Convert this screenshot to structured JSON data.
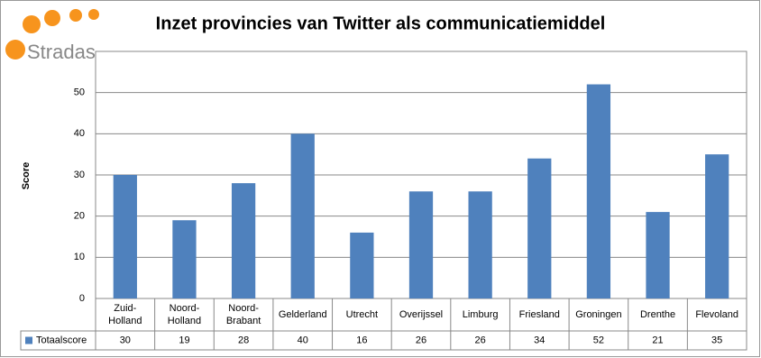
{
  "logo": "Stradas",
  "chart_data": {
    "type": "bar",
    "title": "Inzet provincies van Twitter als communicatiemiddel",
    "y_label": "Score",
    "categories": [
      "Zuid-Holland",
      "Noord-Holland",
      "Noord-Brabant",
      "Gelderland",
      "Utrecht",
      "Overijssel",
      "Limburg",
      "Friesland",
      "Groningen",
      "Drenthe",
      "Flevoland"
    ],
    "series": [
      {
        "name": "Totaalscore",
        "color": "#4f81bd",
        "values": [
          30,
          19,
          28,
          40,
          16,
          26,
          26,
          34,
          52,
          21,
          35
        ]
      }
    ],
    "ylim": [
      0,
      60
    ],
    "yticks": [
      0,
      10,
      20,
      30,
      40,
      50
    ],
    "grid": true,
    "data_table": true
  }
}
